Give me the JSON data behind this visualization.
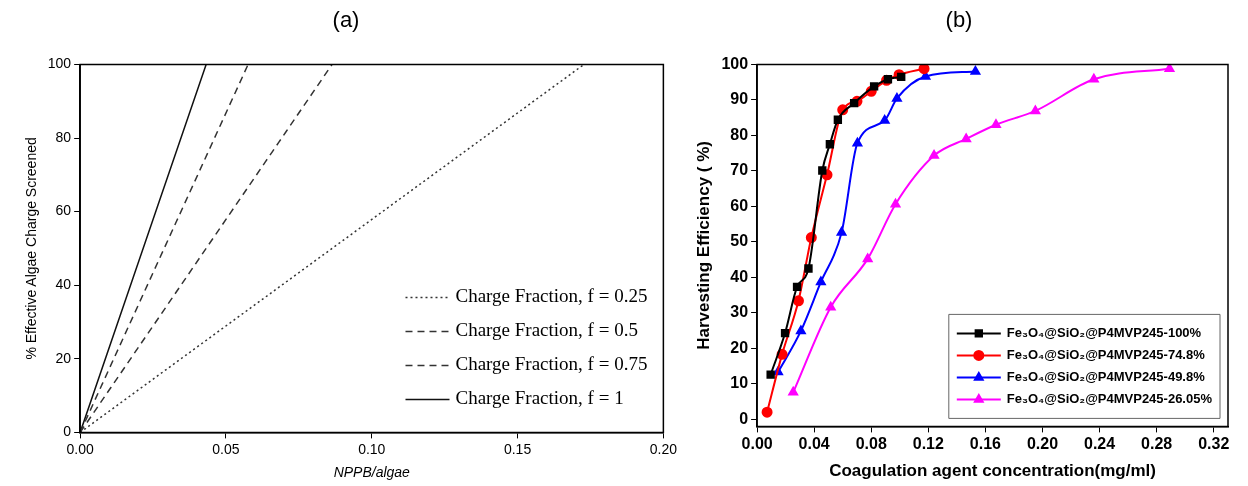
{
  "chart_data": [
    {
      "type": "line",
      "title": "(a)",
      "xlabel": "NPPB/algae",
      "ylabel": "% Effective Algae Charge Screened",
      "xlim": [
        0,
        0.2
      ],
      "ylim": [
        0,
        100
      ],
      "xticks": [
        {
          "value": 0,
          "label": "0.00"
        },
        {
          "value": 0.05,
          "label": "0.05"
        },
        {
          "value": 0.1,
          "label": "0.10"
        },
        {
          "value": 0.15,
          "label": "0.15"
        },
        {
          "value": 0.2,
          "label": "0.20"
        }
      ],
      "yticks": [
        0,
        20,
        40,
        60,
        80,
        100
      ],
      "grid": false,
      "legend": "bottom right",
      "marker": "none",
      "series": [
        {
          "name": "Charge Fraction, f = 0.25",
          "color": "#333333",
          "line_style": "dotted",
          "x": [
            0,
            0.1728
          ],
          "values": [
            0,
            100
          ]
        },
        {
          "name": "Charge Fraction, f = 0.5",
          "color": "#333333",
          "line_style": "dashed",
          "x": [
            0,
            0.0864
          ],
          "values": [
            0,
            100
          ]
        },
        {
          "name": "Charge Fraction, f = 0.75",
          "color": "#333333",
          "line_style": "dashed",
          "x": [
            0,
            0.0576
          ],
          "values": [
            0,
            100
          ]
        },
        {
          "name": "Charge Fraction, f = 1",
          "color": "#111111",
          "line_style": "solid",
          "x": [
            0,
            0.0432
          ],
          "values": [
            0,
            100
          ]
        }
      ]
    },
    {
      "type": "line",
      "title": "(b)",
      "xlabel": "Coagulation agent concentration(mg/ml)",
      "ylabel": "Harvesting Efficiency ( %)",
      "xlim": [
        0,
        0.33
      ],
      "ylim": [
        -2,
        100
      ],
      "xticks": [
        {
          "value": 0,
          "label": "0.00"
        },
        {
          "value": 0.04,
          "label": "0.04"
        },
        {
          "value": 0.08,
          "label": "0.08"
        },
        {
          "value": 0.12,
          "label": "0.12"
        },
        {
          "value": 0.16,
          "label": "0.16"
        },
        {
          "value": 0.2,
          "label": "0.20"
        },
        {
          "value": 0.24,
          "label": "0.24"
        },
        {
          "value": 0.28,
          "label": "0.28"
        },
        {
          "value": 0.32,
          "label": "0.32"
        }
      ],
      "yticks": [
        0,
        10,
        20,
        30,
        40,
        50,
        60,
        70,
        80,
        90,
        100
      ],
      "grid": false,
      "legend": "bottom right",
      "line_style": "solid",
      "series": [
        {
          "name": "Fe₃O₄@SiO₂@P4MVP245-100%",
          "color": "#000000",
          "marker": "square",
          "x": [
            0.0095,
            0.0196,
            0.028,
            0.036,
            0.0457,
            0.051,
            0.0566,
            0.068,
            0.082,
            0.0917,
            0.101
          ],
          "values": [
            12.6,
            24.3,
            37.3,
            42.5,
            70.1,
            77.5,
            84.4,
            89.1,
            93.8,
            95.8,
            96.5
          ]
        },
        {
          "name": "Fe₃O₄@SiO₂@P4MVP245-74.8%",
          "color": "#ff0000",
          "marker": "circle",
          "x": [
            0.007,
            0.0175,
            0.029,
            0.038,
            0.049,
            0.06,
            0.07,
            0.08,
            0.0907,
            0.0995,
            0.117
          ],
          "values": [
            2,
            18.3,
            33.4,
            51.2,
            68.9,
            87.2,
            89.6,
            92.4,
            95.5,
            97.1,
            98.8
          ]
        },
        {
          "name": "Fe₃O₄@SiO₂@P4MVP245-49.8%",
          "color": "#0000ff",
          "marker": "triangle",
          "x": [
            0.0147,
            0.0307,
            0.0447,
            0.0592,
            0.0703,
            0.0894,
            0.098,
            0.118,
            0.153
          ],
          "values": [
            13.3,
            24.9,
            38.7,
            52.6,
            77.8,
            84.2,
            90.4,
            96.6,
            98
          ]
        },
        {
          "name": "Fe₃O₄@SiO₂@P4MVP245-26.05%",
          "color": "#ff00ff",
          "marker": "triangle",
          "x": [
            0.0253,
            0.0516,
            0.0775,
            0.097,
            0.124,
            0.1465,
            0.1674,
            0.195,
            0.236,
            0.289
          ],
          "values": [
            7.6,
            31.6,
            45.2,
            60.6,
            74.3,
            79,
            83,
            86.9,
            95.8,
            98.8
          ]
        }
      ]
    }
  ]
}
